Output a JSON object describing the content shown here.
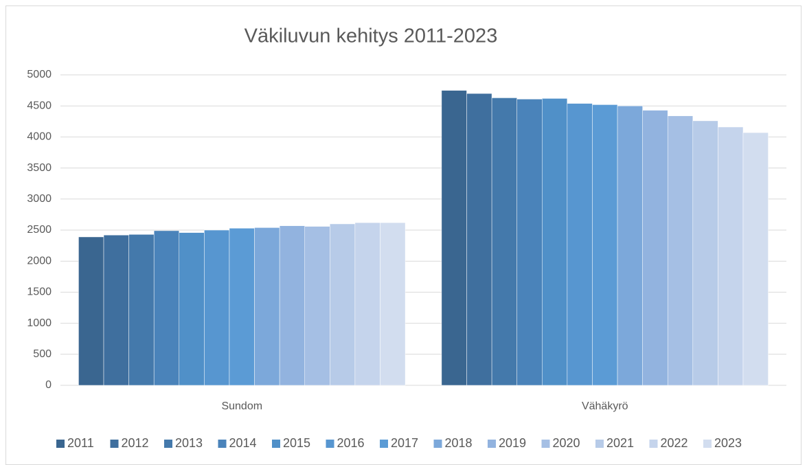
{
  "chart_data": {
    "type": "bar",
    "title": "Väkiluvun kehitys 2011-2023",
    "categories": [
      "Sundom",
      "Vähäkyrö"
    ],
    "series": [
      {
        "name": "2011",
        "color": "#3a6690",
        "values": [
          2390,
          4750
        ]
      },
      {
        "name": "2012",
        "color": "#3f6f9e",
        "values": [
          2420,
          4700
        ]
      },
      {
        "name": "2013",
        "color": "#4479ab",
        "values": [
          2430,
          4630
        ]
      },
      {
        "name": "2014",
        "color": "#4a83ba",
        "values": [
          2490,
          4610
        ]
      },
      {
        "name": "2015",
        "color": "#5090c8",
        "values": [
          2460,
          4620
        ]
      },
      {
        "name": "2016",
        "color": "#5796d0",
        "values": [
          2500,
          4540
        ]
      },
      {
        "name": "2017",
        "color": "#5b9bd5",
        "values": [
          2530,
          4520
        ]
      },
      {
        "name": "2018",
        "color": "#7ca8da",
        "values": [
          2540,
          4500
        ]
      },
      {
        "name": "2019",
        "color": "#92b3df",
        "values": [
          2570,
          4430
        ]
      },
      {
        "name": "2020",
        "color": "#a5bfe4",
        "values": [
          2560,
          4340
        ]
      },
      {
        "name": "2021",
        "color": "#b7cbe8",
        "values": [
          2600,
          4260
        ]
      },
      {
        "name": "2022",
        "color": "#c5d4ec",
        "values": [
          2620,
          4160
        ]
      },
      {
        "name": "2023",
        "color": "#d2ddef",
        "values": [
          2620,
          4070
        ]
      }
    ],
    "ylim": [
      0,
      5000
    ],
    "yticks": [
      0,
      500,
      1000,
      1500,
      2000,
      2500,
      3000,
      3500,
      4000,
      4500,
      5000
    ],
    "grid": true,
    "legend": "bottom"
  }
}
